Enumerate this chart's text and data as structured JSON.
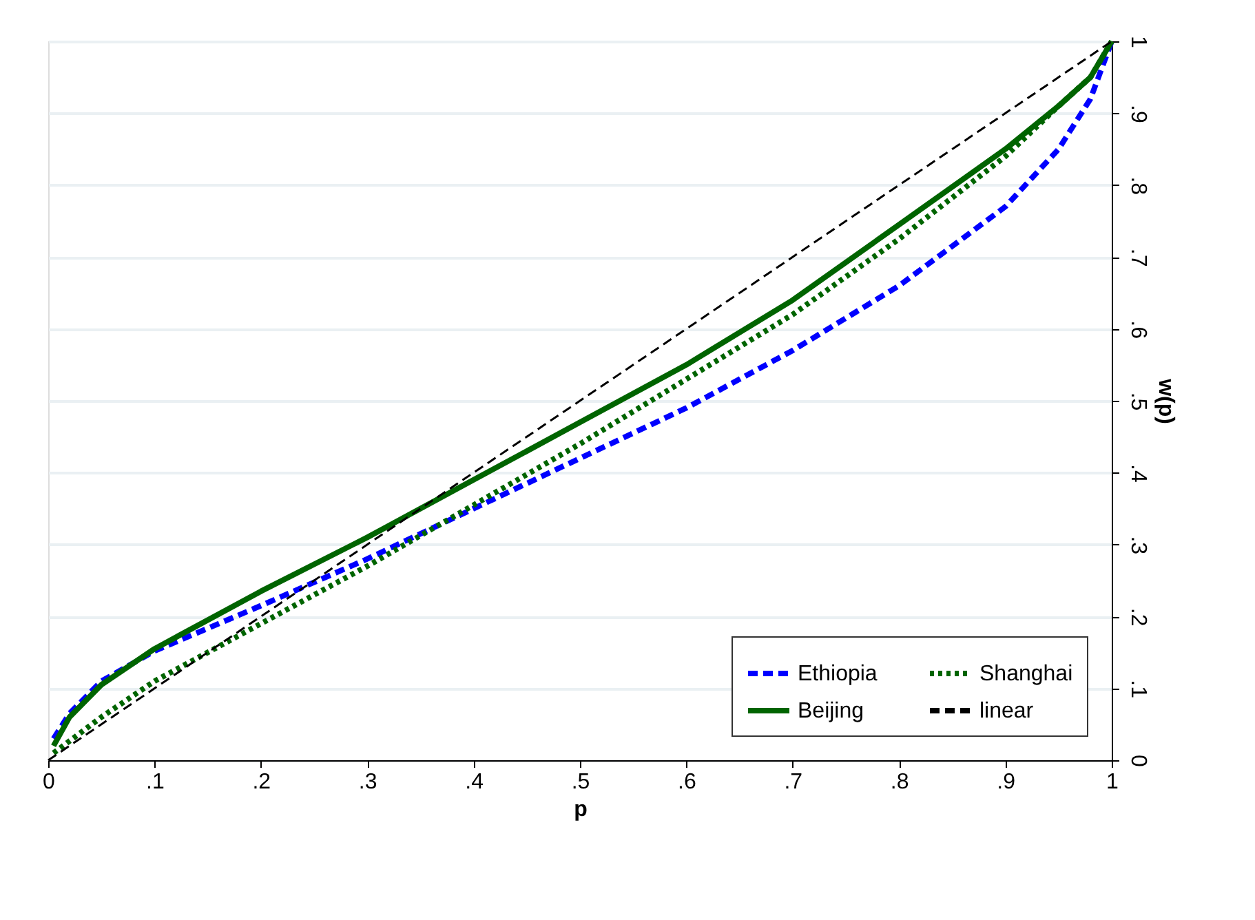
{
  "chart_data": {
    "type": "line",
    "xlabel": "p",
    "ylabel": "w(p)",
    "xlim": [
      0,
      1
    ],
    "ylim": [
      0,
      1
    ],
    "xticks": [
      0,
      {
        "value": 0.1,
        "label": ".1"
      },
      {
        "value": 0.2,
        "label": ".2"
      },
      {
        "value": 0.3,
        "label": ".3"
      },
      {
        "value": 0.4,
        "label": ".4"
      },
      {
        "value": 0.5,
        "label": ".5"
      },
      {
        "value": 0.6,
        "label": ".6"
      },
      {
        "value": 0.7,
        "label": ".7"
      },
      {
        "value": 0.8,
        "label": ".8"
      },
      {
        "value": 0.9,
        "label": ".9"
      },
      1
    ],
    "yticks": [
      0,
      {
        "value": 0.1,
        "label": ".1"
      },
      {
        "value": 0.2,
        "label": ".2"
      },
      {
        "value": 0.3,
        "label": ".3"
      },
      {
        "value": 0.4,
        "label": ".4"
      },
      {
        "value": 0.5,
        "label": ".5"
      },
      {
        "value": 0.6,
        "label": ".6"
      },
      {
        "value": 0.7,
        "label": ".7"
      },
      {
        "value": 0.8,
        "label": ".8"
      },
      {
        "value": 0.9,
        "label": ".9"
      },
      1
    ],
    "grid": "y",
    "legend": "bottom right",
    "series": [
      {
        "name": "Ethiopia",
        "color": "#0000ff",
        "line_style": "dashed",
        "x": [
          0.005,
          0.02,
          0.05,
          0.1,
          0.2,
          0.3,
          0.4,
          0.5,
          0.6,
          0.7,
          0.8,
          0.9,
          0.95,
          0.98,
          1
        ],
        "values": [
          0.03,
          0.065,
          0.11,
          0.152,
          0.215,
          0.28,
          0.35,
          0.42,
          0.49,
          0.57,
          0.66,
          0.77,
          0.85,
          0.92,
          1
        ]
      },
      {
        "name": "Shanghai",
        "color": "#006400",
        "line_style": "dotted",
        "x": [
          0.005,
          0.05,
          0.1,
          0.2,
          0.3,
          0.4,
          0.5,
          0.6,
          0.7,
          0.8,
          0.9,
          0.95,
          0.98,
          1
        ],
        "values": [
          0.01,
          0.06,
          0.11,
          0.19,
          0.27,
          0.355,
          0.44,
          0.53,
          0.62,
          0.725,
          0.84,
          0.91,
          0.95,
          1
        ]
      },
      {
        "name": "Beijing",
        "color": "#006400",
        "line_style": "solid",
        "x": [
          0.005,
          0.02,
          0.05,
          0.1,
          0.2,
          0.3,
          0.4,
          0.5,
          0.6,
          0.7,
          0.8,
          0.9,
          0.95,
          0.98,
          1
        ],
        "values": [
          0.02,
          0.06,
          0.105,
          0.155,
          0.235,
          0.31,
          0.39,
          0.47,
          0.55,
          0.64,
          0.745,
          0.85,
          0.91,
          0.95,
          1
        ]
      },
      {
        "name": "linear",
        "color": "#000000",
        "line_style": "dashed",
        "x": [
          0,
          1
        ],
        "values": [
          0,
          1
        ]
      }
    ]
  }
}
